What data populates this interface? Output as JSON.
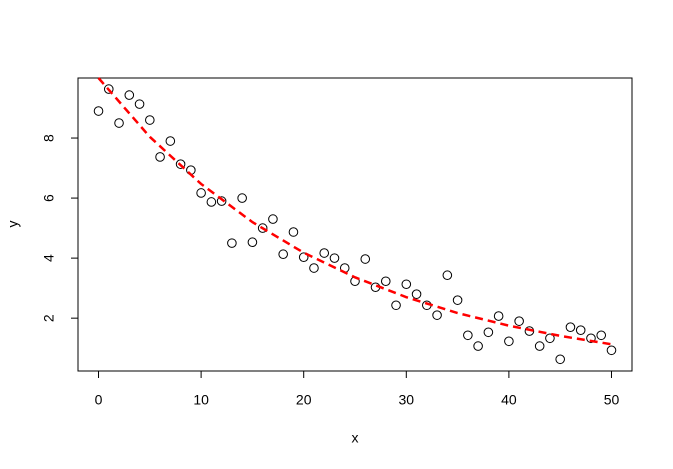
{
  "chart_data": {
    "type": "scatter",
    "x_label": "x",
    "y_label": "y",
    "xlim": [
      -2,
      52
    ],
    "ylim": [
      0.24,
      10.0
    ],
    "xticks": [
      0,
      10,
      20,
      30,
      40,
      50
    ],
    "yticks": [
      2,
      4,
      6,
      8
    ],
    "series": [
      {
        "type": "scatter",
        "color": "#000000",
        "x": [
          0,
          1,
          2,
          3,
          4,
          5,
          6,
          7,
          8,
          9,
          10,
          11,
          12,
          13,
          14,
          15,
          16,
          17,
          18,
          19,
          20,
          21,
          22,
          23,
          24,
          25,
          26,
          27,
          28,
          29,
          30,
          31,
          32,
          33,
          34,
          35,
          36,
          37,
          38,
          39,
          40,
          41,
          42,
          43,
          44,
          45,
          46,
          47,
          48,
          49,
          50
        ],
        "values": [
          8.9,
          9.63,
          8.5,
          9.43,
          9.13,
          8.6,
          7.37,
          7.9,
          7.13,
          6.93,
          6.17,
          5.87,
          5.9,
          4.5,
          6.0,
          4.53,
          5.0,
          5.3,
          4.13,
          4.87,
          4.03,
          3.67,
          4.17,
          4.0,
          3.67,
          3.23,
          3.97,
          3.03,
          3.23,
          2.43,
          3.13,
          2.8,
          2.43,
          2.1,
          3.43,
          2.6,
          1.43,
          1.07,
          1.53,
          2.07,
          1.23,
          1.9,
          1.57,
          1.07,
          1.33,
          0.63,
          1.7,
          1.6,
          1.33,
          1.43,
          0.93
        ]
      },
      {
        "type": "line",
        "color": "#ff0000",
        "dashed": true,
        "x": [
          0,
          5,
          10,
          15,
          20,
          25,
          30,
          35,
          40,
          45,
          50
        ],
        "values": [
          10.0,
          8.04,
          6.47,
          5.2,
          4.18,
          3.36,
          2.7,
          2.17,
          1.75,
          1.41,
          1.13
        ]
      }
    ]
  }
}
